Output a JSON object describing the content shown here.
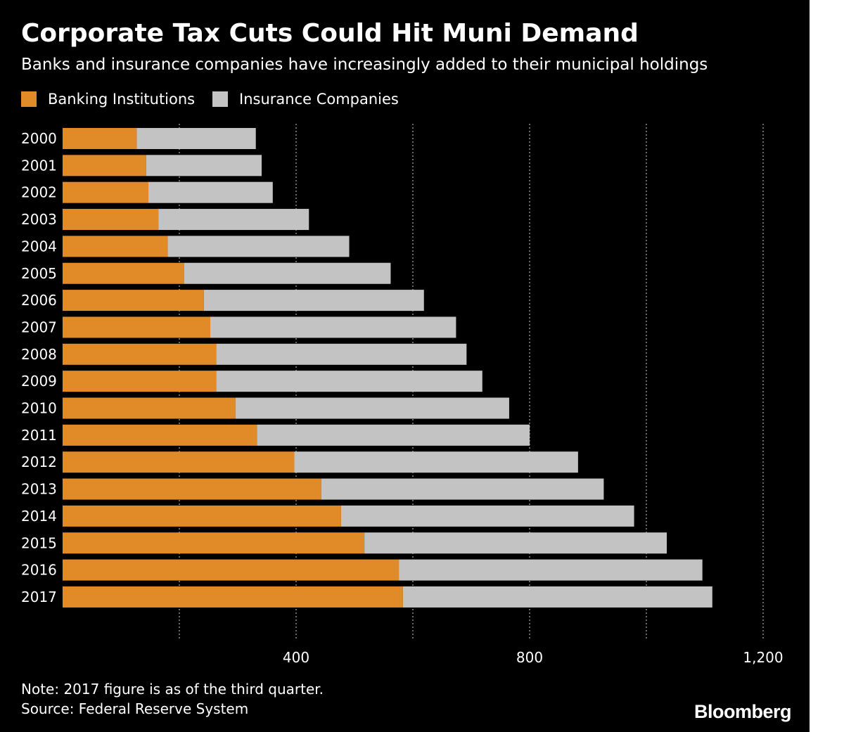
{
  "title": "Corporate Tax Cuts Could Hit Muni Demand",
  "subtitle": "Banks and insurance companies have increasingly added to their municipal holdings",
  "legend": [
    {
      "label": "Banking Institutions",
      "color": "#e08b27"
    },
    {
      "label": "Insurance Companies",
      "color": "#c3c3c3"
    }
  ],
  "colors": {
    "background": "#000000",
    "text": "#ffffff",
    "gridline": "#8a8a8a"
  },
  "note": "Note: 2017 figure is as of the third quarter.",
  "source": "Source: Federal Reserve System",
  "brand": "Bloomberg",
  "chart_data": {
    "type": "bar",
    "orientation": "horizontal",
    "stacked": true,
    "title": "Corporate Tax Cuts Could Hit Muni Demand",
    "subtitle": "Banks and insurance companies have increasingly added to their municipal holdings",
    "categories": [
      "2000",
      "2001",
      "2002",
      "2003",
      "2004",
      "2005",
      "2006",
      "2007",
      "2008",
      "2009",
      "2010",
      "2011",
      "2012",
      "2013",
      "2014",
      "2015",
      "2016",
      "2017"
    ],
    "series": [
      {
        "name": "Banking Institutions",
        "color": "#e08b27",
        "values": [
          127,
          143,
          147,
          164,
          180,
          208,
          242,
          253,
          263,
          263,
          296,
          333,
          397,
          443,
          477,
          517,
          576,
          583
        ]
      },
      {
        "name": "Insurance Companies",
        "color": "#c3c3c3",
        "values": [
          204,
          198,
          213,
          258,
          311,
          354,
          377,
          421,
          429,
          456,
          469,
          467,
          486,
          484,
          502,
          518,
          520,
          530
        ]
      }
    ],
    "totals": [
      331,
      341,
      360,
      422,
      491,
      562,
      619,
      674,
      692,
      719,
      765,
      800,
      883,
      927,
      979,
      1035,
      1096,
      1113
    ],
    "xlim": [
      0,
      1200
    ],
    "x_ticks": [
      400,
      800,
      1200
    ],
    "x_tick_labels": [
      "400",
      "800",
      "1,200"
    ],
    "gridlines": [
      200,
      400,
      600,
      800,
      1000,
      1200
    ],
    "grid": "vertical dotted",
    "legend_position": "top-left",
    "xlabel": "",
    "ylabel": ""
  }
}
